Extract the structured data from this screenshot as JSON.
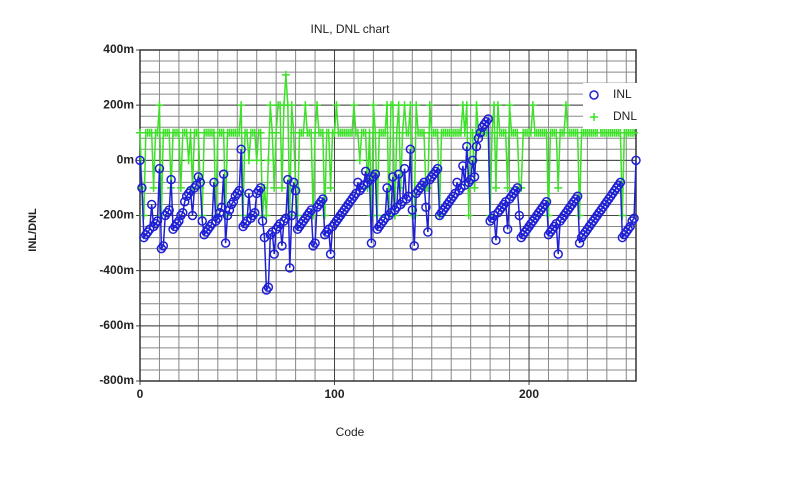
{
  "chart_data": {
    "type": "line",
    "title": "INL, DNL chart",
    "x_label": "Code",
    "y_label": "INL/DNL",
    "x": [
      0,
      1,
      2,
      3,
      4,
      5,
      6,
      7,
      8,
      9,
      10,
      11,
      12,
      13,
      14,
      15,
      16,
      17,
      18,
      19,
      20,
      21,
      22,
      23,
      24,
      25,
      26,
      27,
      28,
      29,
      30,
      31,
      32,
      33,
      34,
      35,
      36,
      37,
      38,
      39,
      40,
      41,
      42,
      43,
      44,
      45,
      46,
      47,
      48,
      49,
      50,
      51,
      52,
      53,
      54,
      55,
      56,
      57,
      58,
      59,
      60,
      61,
      62,
      63,
      64,
      65,
      66,
      67,
      68,
      69,
      70,
      71,
      72,
      73,
      74,
      75,
      76,
      77,
      78,
      79,
      80,
      81,
      82,
      83,
      84,
      85,
      86,
      87,
      88,
      89,
      90,
      91,
      92,
      93,
      94,
      95,
      96,
      97,
      98,
      99,
      100,
      101,
      102,
      103,
      104,
      105,
      106,
      107,
      108,
      109,
      110,
      111,
      112,
      113,
      114,
      115,
      116,
      117,
      118,
      119,
      120,
      121,
      122,
      123,
      124,
      125,
      126,
      127,
      128,
      129,
      130,
      131,
      132,
      133,
      134,
      135,
      136,
      137,
      138,
      139,
      140,
      141,
      142,
      143,
      144,
      145,
      146,
      147,
      148,
      149,
      150,
      151,
      152,
      153,
      154,
      155,
      156,
      157,
      158,
      159,
      160,
      161,
      162,
      163,
      164,
      165,
      166,
      167,
      168,
      169,
      170,
      171,
      172,
      173,
      174,
      175,
      176,
      177,
      178,
      179,
      180,
      181,
      182,
      183,
      184,
      185,
      186,
      187,
      188,
      189,
      190,
      191,
      192,
      193,
      194,
      195,
      196,
      197,
      198,
      199,
      200,
      201,
      202,
      203,
      204,
      205,
      206,
      207,
      208,
      209,
      210,
      211,
      212,
      213,
      214,
      215,
      216,
      217,
      218,
      219,
      220,
      221,
      222,
      223,
      224,
      225,
      226,
      227,
      228,
      229,
      230,
      231,
      232,
      233,
      234,
      235,
      236,
      237,
      238,
      239,
      240,
      241,
      242,
      243,
      244,
      245,
      246,
      247,
      248,
      249,
      250,
      251,
      252,
      253,
      254,
      255
    ],
    "series": [
      {
        "name": "INL",
        "color": "#1f1fd6",
        "marker": "circle",
        "values": [
          0,
          -0.1,
          -0.28,
          -0.27,
          -0.26,
          -0.25,
          -0.16,
          -0.24,
          -0.23,
          -0.22,
          -0.03,
          -0.32,
          -0.31,
          -0.2,
          -0.19,
          -0.18,
          -0.07,
          -0.25,
          -0.24,
          -0.23,
          -0.22,
          -0.2,
          -0.19,
          -0.15,
          -0.13,
          -0.12,
          -0.11,
          -0.2,
          -0.1,
          -0.09,
          -0.06,
          -0.08,
          -0.22,
          -0.27,
          -0.26,
          -0.25,
          -0.24,
          -0.23,
          -0.08,
          -0.22,
          -0.21,
          -0.19,
          -0.17,
          -0.05,
          -0.3,
          -0.2,
          -0.18,
          -0.16,
          -0.15,
          -0.13,
          -0.12,
          -0.11,
          0.04,
          -0.24,
          -0.23,
          -0.22,
          -0.12,
          -0.21,
          -0.2,
          -0.19,
          -0.12,
          -0.11,
          -0.1,
          -0.22,
          -0.28,
          -0.47,
          -0.46,
          -0.27,
          -0.26,
          -0.34,
          -0.25,
          -0.24,
          -0.23,
          -0.31,
          -0.22,
          -0.21,
          -0.07,
          -0.39,
          -0.2,
          -0.08,
          -0.11,
          -0.25,
          -0.24,
          -0.23,
          -0.22,
          -0.21,
          -0.2,
          -0.19,
          -0.18,
          -0.31,
          -0.3,
          -0.17,
          -0.16,
          -0.15,
          -0.14,
          -0.27,
          -0.26,
          -0.25,
          -0.34,
          -0.24,
          -0.23,
          -0.22,
          -0.21,
          -0.2,
          -0.19,
          -0.18,
          -0.17,
          -0.16,
          -0.15,
          -0.14,
          -0.13,
          -0.12,
          -0.08,
          -0.11,
          -0.1,
          -0.09,
          -0.04,
          -0.08,
          -0.07,
          -0.3,
          -0.06,
          -0.05,
          -0.25,
          -0.24,
          -0.23,
          -0.22,
          -0.21,
          -0.1,
          -0.2,
          -0.19,
          -0.06,
          -0.18,
          -0.17,
          -0.05,
          -0.16,
          -0.15,
          -0.03,
          -0.14,
          -0.13,
          0.04,
          -0.18,
          -0.31,
          -0.12,
          -0.11,
          -0.1,
          -0.09,
          -0.08,
          -0.17,
          -0.26,
          -0.07,
          -0.06,
          -0.05,
          -0.04,
          -0.03,
          -0.2,
          -0.19,
          -0.18,
          -0.17,
          -0.16,
          -0.15,
          -0.14,
          -0.13,
          -0.12,
          -0.08,
          -0.11,
          -0.1,
          -0.02,
          -0.09,
          0.05,
          -0.08,
          -0.07,
          0.0,
          -0.06,
          0.05,
          0.08,
          0.1,
          0.12,
          0.13,
          0.14,
          0.15,
          -0.22,
          -0.21,
          -0.2,
          -0.29,
          -0.19,
          -0.18,
          -0.17,
          -0.16,
          -0.15,
          -0.25,
          -0.14,
          -0.13,
          -0.12,
          -0.11,
          -0.1,
          -0.2,
          -0.28,
          -0.27,
          -0.26,
          -0.25,
          -0.24,
          -0.23,
          -0.22,
          -0.21,
          -0.2,
          -0.19,
          -0.18,
          -0.17,
          -0.16,
          -0.15,
          -0.27,
          -0.26,
          -0.25,
          -0.24,
          -0.23,
          -0.34,
          -0.22,
          -0.21,
          -0.2,
          -0.19,
          -0.18,
          -0.17,
          -0.16,
          -0.15,
          -0.14,
          -0.13,
          -0.3,
          -0.28,
          -0.27,
          -0.26,
          -0.25,
          -0.24,
          -0.23,
          -0.22,
          -0.21,
          -0.2,
          -0.19,
          -0.18,
          -0.17,
          -0.16,
          -0.15,
          -0.14,
          -0.13,
          -0.12,
          -0.11,
          -0.1,
          -0.09,
          -0.08,
          -0.28,
          -0.27,
          -0.26,
          -0.25,
          -0.24,
          -0.22,
          -0.21,
          0
        ]
      },
      {
        "name": "DNL",
        "color": "#3ee02a",
        "marker": "plus",
        "values": [
          0.1,
          -0.1,
          -0.2,
          0.1,
          0.1,
          0.1,
          0.1,
          -0.1,
          0.1,
          0.1,
          0.2,
          -0.2,
          0.1,
          0.1,
          0.1,
          0.1,
          -0.1,
          0.1,
          0.1,
          0.1,
          0.1,
          -0.1,
          0.1,
          0.1,
          0.1,
          0,
          0.1,
          -0.1,
          0.1,
          0.1,
          0.1,
          -0.1,
          -0.2,
          0.1,
          0.1,
          0.1,
          0.1,
          0.1,
          0.1,
          -0.2,
          0.1,
          0.1,
          0.1,
          0.1,
          -0.2,
          0.1,
          0.1,
          0.1,
          0.1,
          0.1,
          0.1,
          0.1,
          0.2,
          -0.2,
          0.1,
          0.1,
          0,
          0.1,
          0.1,
          0.1,
          0,
          0.1,
          0.1,
          -0.2,
          -0.1,
          -0.2,
          0,
          0.2,
          0.1,
          -0.1,
          0.1,
          0.2,
          0.2,
          -0.1,
          0.2,
          0.31,
          0.2,
          -0.2,
          0.2,
          0.1,
          -0.1,
          -0.2,
          0.1,
          0.1,
          0.1,
          0.2,
          0.1,
          0.1,
          0.1,
          -0.2,
          0.1,
          0.2,
          0.1,
          0.1,
          0.1,
          -0.2,
          0.1,
          0.1,
          -0.1,
          0.1,
          0.1,
          0.2,
          0.1,
          0.1,
          0.1,
          0.1,
          0.1,
          0.1,
          0.1,
          0.1,
          0.2,
          0.1,
          0.1,
          0,
          0.1,
          0.1,
          0.1,
          -0.1,
          0.1,
          -0.2,
          0.2,
          0.1,
          -0.2,
          0.1,
          0.1,
          0.1,
          0.1,
          0.2,
          -0.2,
          0.2,
          0.2,
          -0.2,
          0.1,
          0.2,
          -0.1,
          0.1,
          0.2,
          0.1,
          0.1,
          0.2,
          -0.2,
          -0.2,
          0.2,
          0.1,
          0.1,
          0.1,
          0.1,
          -0.1,
          -0.1,
          0.2,
          0.1,
          0.1,
          0.1,
          0.1,
          -0.2,
          0.1,
          0.1,
          0.1,
          0.1,
          0.1,
          0.1,
          0.1,
          0.1,
          0.1,
          0.1,
          0.1,
          0.2,
          0.1,
          0.2,
          -0.2,
          0.1,
          0.1,
          -0.1,
          0.2,
          0.1,
          0.1,
          0.1,
          0.1,
          0.1,
          0.1,
          -0.2,
          0.1,
          0.2,
          -0.1,
          0.2,
          0.1,
          0.1,
          0.1,
          0.1,
          -0.1,
          0.2,
          0.1,
          0.1,
          0.1,
          0.1,
          -0.1,
          -0.1,
          0.1,
          0.1,
          0.1,
          0.1,
          0.1,
          0.2,
          0.1,
          0.1,
          0.1,
          0.1,
          0.1,
          0.1,
          0.1,
          -0.2,
          0.1,
          0.1,
          0.1,
          0.1,
          -0.1,
          0.1,
          0.1,
          0.1,
          0.2,
          0.1,
          0.1,
          0.1,
          0.1,
          0.1,
          0.1,
          -0.2,
          0.1,
          0.1,
          0.1,
          0.1,
          0.1,
          0.1,
          0.1,
          0.1,
          0.1,
          0.2,
          0.1,
          0.1,
          0.1,
          0.1,
          0.1,
          0.1,
          0.1,
          0.1,
          0.1,
          0.1,
          0.1,
          -0.2,
          0.1,
          0.1,
          0.1,
          0.1,
          0.1,
          0.1,
          0.2
        ]
      }
    ],
    "xlim": [
      0,
      255
    ],
    "xticks": [
      0,
      100,
      200
    ],
    "ylim": [
      -0.8,
      0.4
    ],
    "yticks": [
      {
        "value": -0.8,
        "label": "-800m"
      },
      {
        "value": -0.6,
        "label": "-600m"
      },
      {
        "value": -0.4,
        "label": "-400m"
      },
      {
        "value": -0.2,
        "label": "-200m"
      },
      {
        "value": 0,
        "label": "0m"
      },
      {
        "value": 0.2,
        "label": "200m"
      },
      {
        "value": 0.4,
        "label": "400m"
      }
    ],
    "x_minor_step": 10,
    "y_minor_step": 0.04,
    "grid": true,
    "legend": "upper right"
  }
}
